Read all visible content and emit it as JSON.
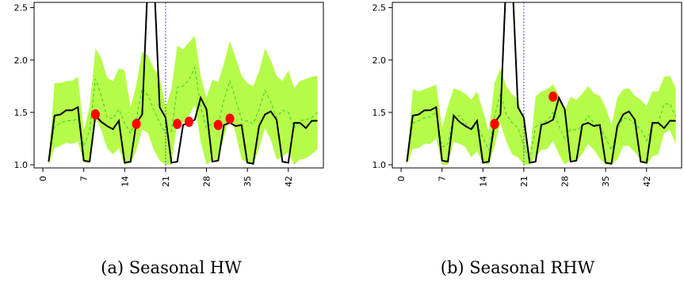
{
  "chart_data": [
    {
      "type": "line",
      "caption": "(a) Seasonal HW",
      "x": [
        1,
        2,
        3,
        4,
        5,
        6,
        7,
        8,
        9,
        10,
        11,
        12,
        13,
        14,
        15,
        16,
        17,
        18,
        19,
        20,
        21,
        22,
        23,
        24,
        25,
        26,
        27,
        28,
        29,
        30,
        31,
        32,
        33,
        34,
        35,
        36,
        37,
        38,
        39,
        40,
        41,
        42,
        43,
        44,
        45,
        46,
        47
      ],
      "series": [
        {
          "role": "observed",
          "values": [
            1.03,
            1.47,
            1.48,
            1.52,
            1.52,
            1.55,
            1.04,
            1.03,
            1.47,
            1.41,
            1.37,
            1.34,
            1.42,
            1.02,
            1.03,
            1.4,
            1.48,
            2.8,
            2.8,
            1.55,
            1.45,
            1.02,
            1.03,
            1.38,
            1.4,
            1.43,
            1.64,
            1.53,
            1.03,
            1.04,
            1.38,
            1.4,
            1.37,
            1.38,
            1.02,
            1.01,
            1.37,
            1.48,
            1.51,
            1.43,
            1.03,
            1.02,
            1.4,
            1.4,
            1.35,
            1.42,
            1.42
          ]
        },
        {
          "role": "forecast",
          "values": [
            1.03,
            1.36,
            1.4,
            1.42,
            1.42,
            1.44,
            1.18,
            1.33,
            1.82,
            1.66,
            1.45,
            1.44,
            1.53,
            1.4,
            1.3,
            1.44,
            1.73,
            1.66,
            1.52,
            1.4,
            1.3,
            1.32,
            1.74,
            1.75,
            1.81,
            1.93,
            1.55,
            1.35,
            1.4,
            1.39,
            1.62,
            1.8,
            1.62,
            1.43,
            1.42,
            1.39,
            1.53,
            1.71,
            1.6,
            1.45,
            1.52,
            1.5,
            1.35,
            1.42,
            1.43,
            1.45,
            1.5
          ]
        },
        {
          "role": "upper",
          "values": [
            1.05,
            1.78,
            1.78,
            1.8,
            1.8,
            1.84,
            1.33,
            1.55,
            2.11,
            2.02,
            1.83,
            1.8,
            1.92,
            1.9,
            1.55,
            1.76,
            2.08,
            2.04,
            1.92,
            1.84,
            1.55,
            1.72,
            2.14,
            2.1,
            2.17,
            2.23,
            1.85,
            1.64,
            1.81,
            1.79,
            1.97,
            2.18,
            2.02,
            1.85,
            1.78,
            1.75,
            1.89,
            2.11,
            2.0,
            1.85,
            1.8,
            1.9,
            1.73,
            1.8,
            1.82,
            1.84,
            1.85
          ]
        },
        {
          "role": "lower",
          "values": [
            1.0,
            1.16,
            1.18,
            1.21,
            1.2,
            1.22,
            1.02,
            1.02,
            1.46,
            1.33,
            1.16,
            1.1,
            1.16,
            1.0,
            1.02,
            1.13,
            1.34,
            1.3,
            1.14,
            1.04,
            1.0,
            1.0,
            1.41,
            1.4,
            1.47,
            1.57,
            1.22,
            1.0,
            1.05,
            1.04,
            1.26,
            1.47,
            1.3,
            1.05,
            1.02,
            1.0,
            1.16,
            1.35,
            1.24,
            1.05,
            1.08,
            1.12,
            1.0,
            1.05,
            1.06,
            1.1,
            1.15
          ]
        }
      ],
      "outliers": [
        {
          "x": 9,
          "y": 1.48
        },
        {
          "x": 16,
          "y": 1.39
        },
        {
          "x": 23,
          "y": 1.39
        },
        {
          "x": 25,
          "y": 1.41
        },
        {
          "x": 30,
          "y": 1.38
        },
        {
          "x": 32,
          "y": 1.44
        }
      ],
      "vline_x": 21,
      "x_ticks": [
        0,
        7,
        14,
        21,
        28,
        35,
        42
      ],
      "y_ticks": [
        1.0,
        1.5,
        2.0,
        2.5
      ],
      "y_tick_labels": [
        "1.0",
        "1.5",
        "2.0",
        "2.5"
      ],
      "xlim": [
        -1.5,
        48
      ],
      "ylim": [
        0.97,
        2.55
      ],
      "colors": {
        "band": "#b6fb4a",
        "forecast": "#2fd22f",
        "observed": "#000000",
        "outlier": "#ff0000",
        "vline": "#4b4bd6"
      }
    },
    {
      "type": "line",
      "caption": "(b) Seasonal RHW",
      "x": [
        1,
        2,
        3,
        4,
        5,
        6,
        7,
        8,
        9,
        10,
        11,
        12,
        13,
        14,
        15,
        16,
        17,
        18,
        19,
        20,
        21,
        22,
        23,
        24,
        25,
        26,
        27,
        28,
        29,
        30,
        31,
        32,
        33,
        34,
        35,
        36,
        37,
        38,
        39,
        40,
        41,
        42,
        43,
        44,
        45,
        46,
        47
      ],
      "series": [
        {
          "role": "observed",
          "values": [
            1.03,
            1.47,
            1.48,
            1.52,
            1.52,
            1.55,
            1.04,
            1.03,
            1.47,
            1.41,
            1.37,
            1.34,
            1.42,
            1.02,
            1.03,
            1.4,
            1.48,
            2.8,
            2.8,
            1.55,
            1.45,
            1.02,
            1.03,
            1.38,
            1.4,
            1.43,
            1.64,
            1.53,
            1.03,
            1.04,
            1.38,
            1.4,
            1.37,
            1.38,
            1.02,
            1.01,
            1.37,
            1.48,
            1.51,
            1.43,
            1.03,
            1.02,
            1.4,
            1.4,
            1.35,
            1.42,
            1.42
          ]
        },
        {
          "role": "forecast",
          "values": [
            1.03,
            1.4,
            1.42,
            1.45,
            1.46,
            1.5,
            1.17,
            1.2,
            1.46,
            1.47,
            1.4,
            1.33,
            1.38,
            1.26,
            1.14,
            1.46,
            1.68,
            1.48,
            1.4,
            1.35,
            1.18,
            1.04,
            1.36,
            1.4,
            1.42,
            1.5,
            1.37,
            1.25,
            1.34,
            1.33,
            1.37,
            1.47,
            1.4,
            1.36,
            1.26,
            1.14,
            1.33,
            1.45,
            1.44,
            1.39,
            1.34,
            1.23,
            1.38,
            1.41,
            1.58,
            1.58,
            1.46
          ]
        },
        {
          "role": "upper",
          "values": [
            1.05,
            1.72,
            1.7,
            1.72,
            1.74,
            1.77,
            1.35,
            1.56,
            1.73,
            1.71,
            1.68,
            1.62,
            1.7,
            1.52,
            1.32,
            1.78,
            1.92,
            1.75,
            1.67,
            1.63,
            1.42,
            1.1,
            1.65,
            1.7,
            1.72,
            1.77,
            1.66,
            1.52,
            1.65,
            1.62,
            1.68,
            1.75,
            1.68,
            1.66,
            1.55,
            1.38,
            1.64,
            1.72,
            1.73,
            1.66,
            1.62,
            1.56,
            1.7,
            1.7,
            1.84,
            1.85,
            1.73
          ]
        },
        {
          "role": "lower",
          "values": [
            1.0,
            1.15,
            1.16,
            1.2,
            1.2,
            1.25,
            1.0,
            1.0,
            1.22,
            1.2,
            1.17,
            1.07,
            1.13,
            1.02,
            1.0,
            1.18,
            1.4,
            1.22,
            1.1,
            1.07,
            1.0,
            1.0,
            1.08,
            1.14,
            1.15,
            1.23,
            1.1,
            1.0,
            1.05,
            1.04,
            1.1,
            1.2,
            1.14,
            1.06,
            1.0,
            1.0,
            1.05,
            1.18,
            1.18,
            1.12,
            1.05,
            1.0,
            1.08,
            1.1,
            1.3,
            1.33,
            1.2
          ]
        }
      ],
      "outliers": [
        {
          "x": 16,
          "y": 1.39
        },
        {
          "x": 26,
          "y": 1.65
        }
      ],
      "vline_x": 21,
      "x_ticks": [
        0,
        7,
        14,
        21,
        28,
        35,
        42
      ],
      "y_ticks": [
        1.0,
        1.5,
        2.0,
        2.5
      ],
      "y_tick_labels": [
        "1.0",
        "1.5",
        "2.0",
        "2.5"
      ],
      "xlim": [
        -1.5,
        48
      ],
      "ylim": [
        0.97,
        2.55
      ],
      "colors": {
        "band": "#b6fb4a",
        "forecast": "#2fd22f",
        "observed": "#000000",
        "outlier": "#ff0000",
        "vline": "#4b4bd6"
      }
    }
  ]
}
